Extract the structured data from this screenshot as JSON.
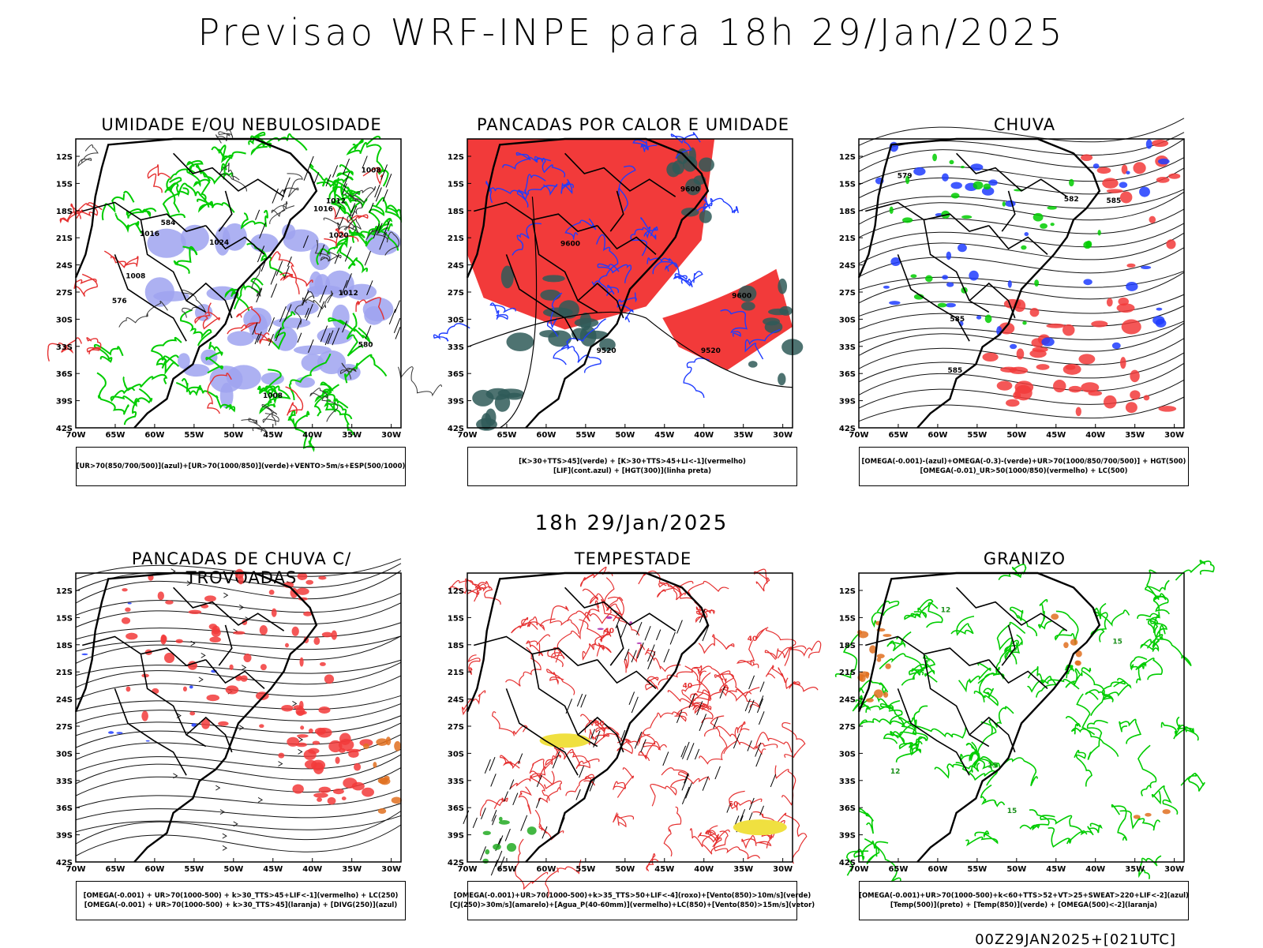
{
  "header": {
    "title": "Previsao WRF-INPE  para 18h 29/Jan/2025",
    "subtitle": "18h 29/Jan/2025",
    "footer": "00Z29JAN2025+[021UTC]"
  },
  "axes": {
    "lat_labels": [
      "12S",
      "15S",
      "18S",
      "21S",
      "24S",
      "27S",
      "30S",
      "33S",
      "36S",
      "39S",
      "42S"
    ],
    "lon_labels": [
      "70W",
      "65W",
      "60W",
      "55W",
      "50W",
      "45W",
      "40W",
      "35W",
      "30W"
    ]
  },
  "colors": {
    "blue_fill": "#9fa3f0",
    "green_line": "#00cc00",
    "red_fill": "#f23a3a",
    "dark_fill": "#2f5a58",
    "orange": "#e07020",
    "yellow": "#f0e040",
    "blue_line": "#1f3cff"
  },
  "panels": [
    {
      "title": "UMIDADE E/OU NEBULOSIDADE",
      "legend": [
        "[UR>70(850/700/500)](azul)+[UR>70(1000/850)](verde)+VENTO>5m/s+ESP(500/1000)"
      ],
      "labels": [
        "1008",
        "1008",
        "1008",
        "1012",
        "1012",
        "1016",
        "1016",
        "1020",
        "1024",
        "576",
        "580",
        "584"
      ]
    },
    {
      "title": "PANCADAS POR CALOR E UMIDADE",
      "legend": [
        "[K>30+TTS>45](verde) + [K>30+TTS>45+LI<-1](vermelho)",
        "[LIF](cont.azul) + [HGT(300)](linha preta)"
      ],
      "labels": [
        "9600",
        "9600",
        "9520",
        "9600",
        "9520"
      ]
    },
    {
      "title": "CHUVA",
      "legend": [
        "[OMEGA(-0.001)-(azul)+OMEGA(-0.3)-(verde)+UR>70(1000/850/700/500)] + HGT(500)",
        "[OMEGA(-0.01)_UR>50(1000/850)(vermelho) + LC(500)"
      ],
      "labels": [
        "585",
        "585",
        "582",
        "579",
        "585"
      ]
    },
    {
      "title": "PANCADAS DE CHUVA C/ TROVOADAS",
      "legend": [
        "[OMEGA(-0.001) + UR>70(1000-500) + k>30_TTS>45+LIF<-1](vermelho) + LC(250)",
        "[OMEGA(-0.001) + UR>70(1000-500) + k>30_TTS>45](laranja) + [DIVG(250)](azul)"
      ],
      "labels": []
    },
    {
      "title": "TEMPESTADE",
      "legend": [
        "[OMEGA(-0.001)+UR>70(1000-500)+k>35_TTS>50+LIF<-4](roxo)+[Vento(850)>10m/s](verde)",
        "[CJ(250)>30m/s](amarelo)+[Agua_P(40-60mm)](vermelho)+LC(850)+[Vento(850)>15m/s](vetor)"
      ],
      "labels": [
        "50",
        "40",
        "50",
        "40",
        "40"
      ]
    },
    {
      "title": "GRANIZO",
      "legend": [
        "[OMEGA(-0.001)+UR>70(1000-500)+k<60+TTS>52+VT>25+SWEAT>220+LIF<-2](azul)",
        "[Temp(500)](preto) + [Temp(850)](verde) + [OMEGA(500)<-2](laranja)"
      ],
      "labels": [
        "15",
        "15",
        "12",
        "12",
        "15"
      ]
    }
  ]
}
